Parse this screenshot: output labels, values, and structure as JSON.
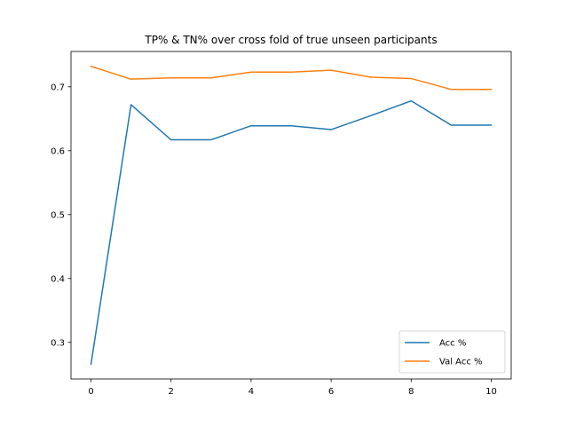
{
  "chart_data": {
    "type": "line",
    "title": "TP% & TN% over cross fold of true unseen participants",
    "xlabel": "",
    "ylabel": "",
    "x": [
      0,
      1,
      2,
      3,
      4,
      5,
      6,
      7,
      8,
      9,
      10
    ],
    "series": [
      {
        "name": "Acc %",
        "color": "#1f77b4",
        "values": [
          0.266,
          0.672,
          0.617,
          0.617,
          0.639,
          0.639,
          0.633,
          0.655,
          0.678,
          0.64,
          0.64
        ]
      },
      {
        "name": "Val Acc %",
        "color": "#ff7f0e",
        "values": [
          0.732,
          0.712,
          0.714,
          0.714,
          0.723,
          0.723,
          0.726,
          0.715,
          0.713,
          0.696,
          0.696
        ]
      }
    ],
    "xlim": [
      -0.5,
      10.5
    ],
    "ylim": [
      0.2427,
      0.7553
    ],
    "x_ticks": [
      0,
      2,
      4,
      6,
      8,
      10
    ],
    "y_ticks": [
      0.3,
      0.4,
      0.5,
      0.6,
      0.7
    ],
    "x_tick_labels": [
      "0",
      "2",
      "4",
      "6",
      "8",
      "10"
    ],
    "y_tick_labels": [
      "0.3",
      "0.4",
      "0.5",
      "0.6",
      "0.7"
    ],
    "grid": false,
    "legend": "lower-right"
  }
}
